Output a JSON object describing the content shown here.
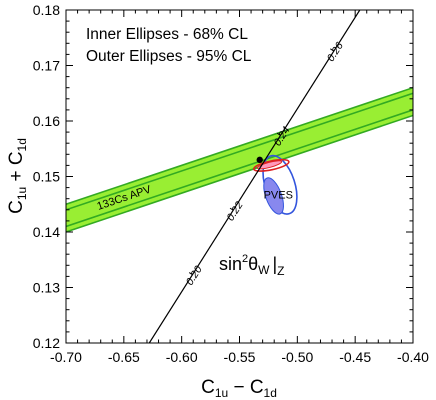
{
  "chart_data": {
    "type": "scatter",
    "xlabel": "C1u − C1d",
    "xlabel_main": "C",
    "xlabel_sub1": "1u",
    "xlabel_mid": " − C",
    "xlabel_sub2": "1d",
    "ylabel": "C1u + C1d",
    "ylabel_main": "C",
    "ylabel_sub1": "1u",
    "ylabel_mid": " + C",
    "ylabel_sub2": "1d",
    "xlim": [
      -0.7,
      -0.4
    ],
    "ylim": [
      0.12,
      0.18
    ],
    "xticks": [
      "-0.70",
      "-0.65",
      "-0.60",
      "-0.55",
      "-0.50",
      "-0.45",
      "-0.40"
    ],
    "yticks": [
      "0.12",
      "0.13",
      "0.14",
      "0.15",
      "0.16",
      "0.17",
      "0.18"
    ],
    "legend_lines": [
      "Inner Ellipses - 68% CL",
      "Outer Ellipses - 95% CL"
    ],
    "legend_position": "top-left",
    "colors": {
      "apv_band_fill": "#99ee33",
      "apv_band_edge": "#33aa22",
      "pves_inner_fill": "#8888ee",
      "pves_outer_edge": "#3355dd",
      "combined_fill": "#ff99bb",
      "combined_edge": "#dd2222",
      "sm_line": "#000000"
    },
    "apv_band": {
      "label": "133Cs APV",
      "slope": 0.07,
      "center_at_x_min": 0.1425,
      "half_width_inner": 0.0015,
      "half_width_outer": 0.0025
    },
    "pves_inner": {
      "label": "PVES",
      "cx": -0.5205,
      "cy": 0.1465,
      "a": 0.0165,
      "b": 0.0068,
      "angle_deg": 110
    },
    "pves_outer": {
      "cx": -0.515,
      "cy": 0.1485,
      "a": 0.0262,
      "b": 0.0128,
      "angle_deg": 108
    },
    "combined_inner": {
      "cx": -0.524,
      "cy": 0.1521,
      "a": 0.0108,
      "b": 0.0022,
      "angle_deg": 15
    },
    "combined_outer": {
      "cx": -0.5225,
      "cy": 0.152,
      "a": 0.0155,
      "b": 0.0038,
      "angle_deg": 12
    },
    "standard_model": {
      "label_main": "sin",
      "label_sup": "2",
      "label_theta": "θ",
      "label_sub": "W",
      "label_bar": "|",
      "label_z": "Z",
      "point": {
        "x": -0.5325,
        "y": 0.153
      },
      "line_start": {
        "x": -0.628,
        "y": 0.12
      },
      "line_end": {
        "x": -0.446,
        "y": 0.18
      },
      "tick_labels": [
        "0.20",
        "0.22",
        "0.24",
        "0.26"
      ],
      "tick_positions": [
        {
          "x": -0.5935,
          "y": 0.1327
        },
        {
          "x": -0.5582,
          "y": 0.1443
        },
        {
          "x": -0.5175,
          "y": 0.1578
        },
        {
          "x": -0.4715,
          "y": 0.173
        }
      ]
    }
  }
}
